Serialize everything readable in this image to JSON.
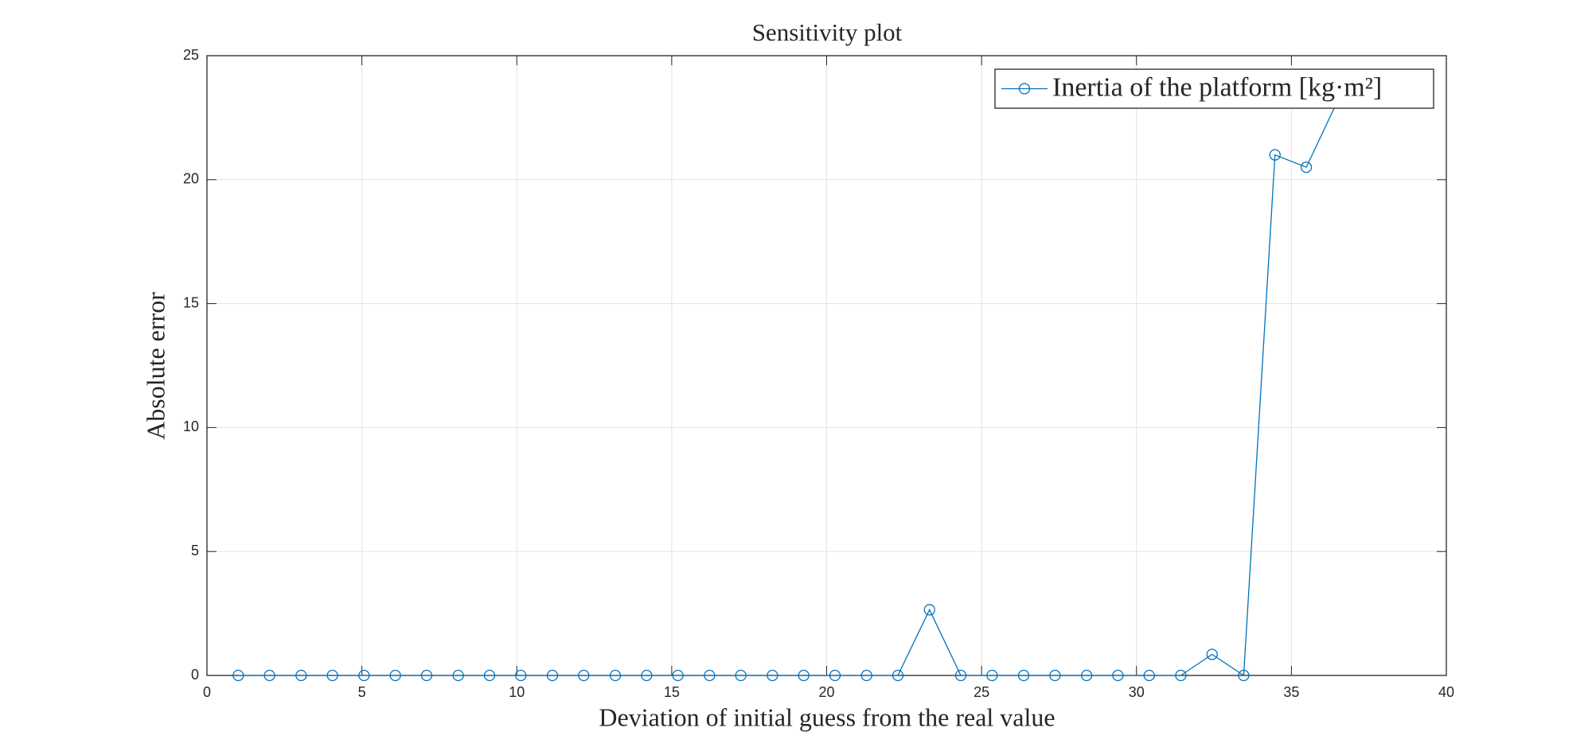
{
  "chart_data": {
    "type": "line",
    "title": "Sensitivity plot",
    "x_label": "Deviation of initial guess from the real value",
    "y_label": "Absolute error",
    "x": [
      1.01,
      2.02,
      3.04,
      4.05,
      5.07,
      6.08,
      7.09,
      8.11,
      9.12,
      10.13,
      11.15,
      12.16,
      13.18,
      14.19,
      15.2,
      16.22,
      17.23,
      18.25,
      19.26,
      20.27,
      21.29,
      22.3,
      23.32,
      24.33,
      25.34,
      26.36,
      27.37,
      28.39,
      29.4,
      30.41,
      31.43,
      32.44,
      33.46,
      34.47,
      35.48,
      36.5
    ],
    "series": [
      {
        "name": "Inertia of the platform [kg·m²]",
        "color": "#0072bd",
        "marker": "circle",
        "values": [
          0,
          0,
          0,
          0,
          0,
          0,
          0,
          0,
          0,
          0,
          0,
          0,
          0,
          0,
          0,
          0,
          0,
          0,
          0,
          0,
          0,
          0,
          2.65,
          0,
          0,
          0,
          0,
          0,
          0,
          0,
          0,
          0.85,
          0,
          21.0,
          20.5,
          23.2
        ]
      }
    ],
    "xlim": [
      0,
      40
    ],
    "xticks": [
      0,
      5,
      10,
      15,
      20,
      25,
      30,
      35,
      40
    ],
    "ylim": [
      0,
      25
    ],
    "yticks": [
      0,
      5,
      10,
      15,
      20,
      25
    ],
    "grid": true,
    "legend": "northeast"
  }
}
